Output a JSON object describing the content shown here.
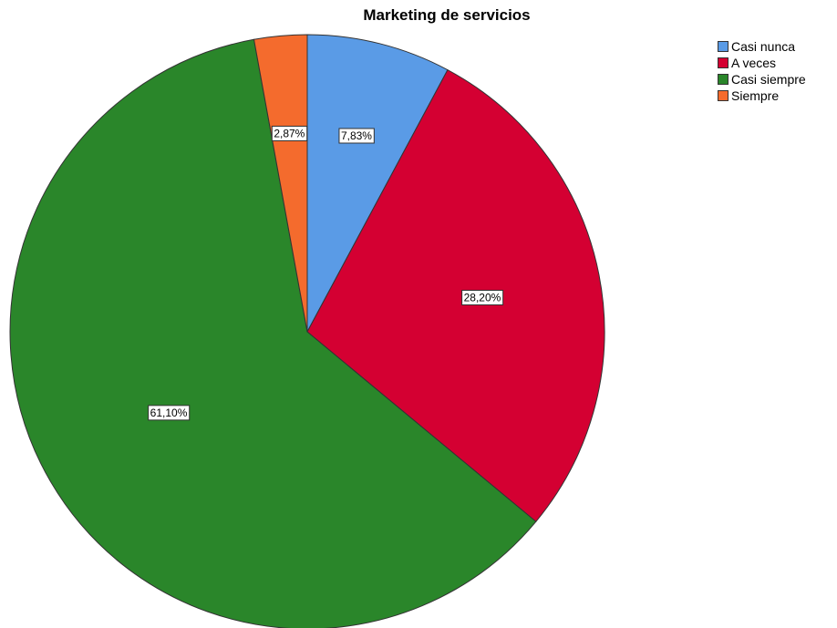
{
  "chart_data": {
    "type": "pie",
    "title": "Marketing de servicios",
    "categories": [
      "Casi nunca",
      "A veces",
      "Casi siempre",
      "Siempre"
    ],
    "values": [
      7.83,
      28.2,
      61.1,
      2.87
    ],
    "value_labels": [
      "7,83%",
      "28,20%",
      "61,10%",
      "2,87%"
    ],
    "colors": [
      "#5a9be6",
      "#d40032",
      "#2a862a",
      "#f46b2d"
    ],
    "start_angle": "12 o'clock",
    "direction": "clockwise",
    "legend_position": "top-right"
  }
}
